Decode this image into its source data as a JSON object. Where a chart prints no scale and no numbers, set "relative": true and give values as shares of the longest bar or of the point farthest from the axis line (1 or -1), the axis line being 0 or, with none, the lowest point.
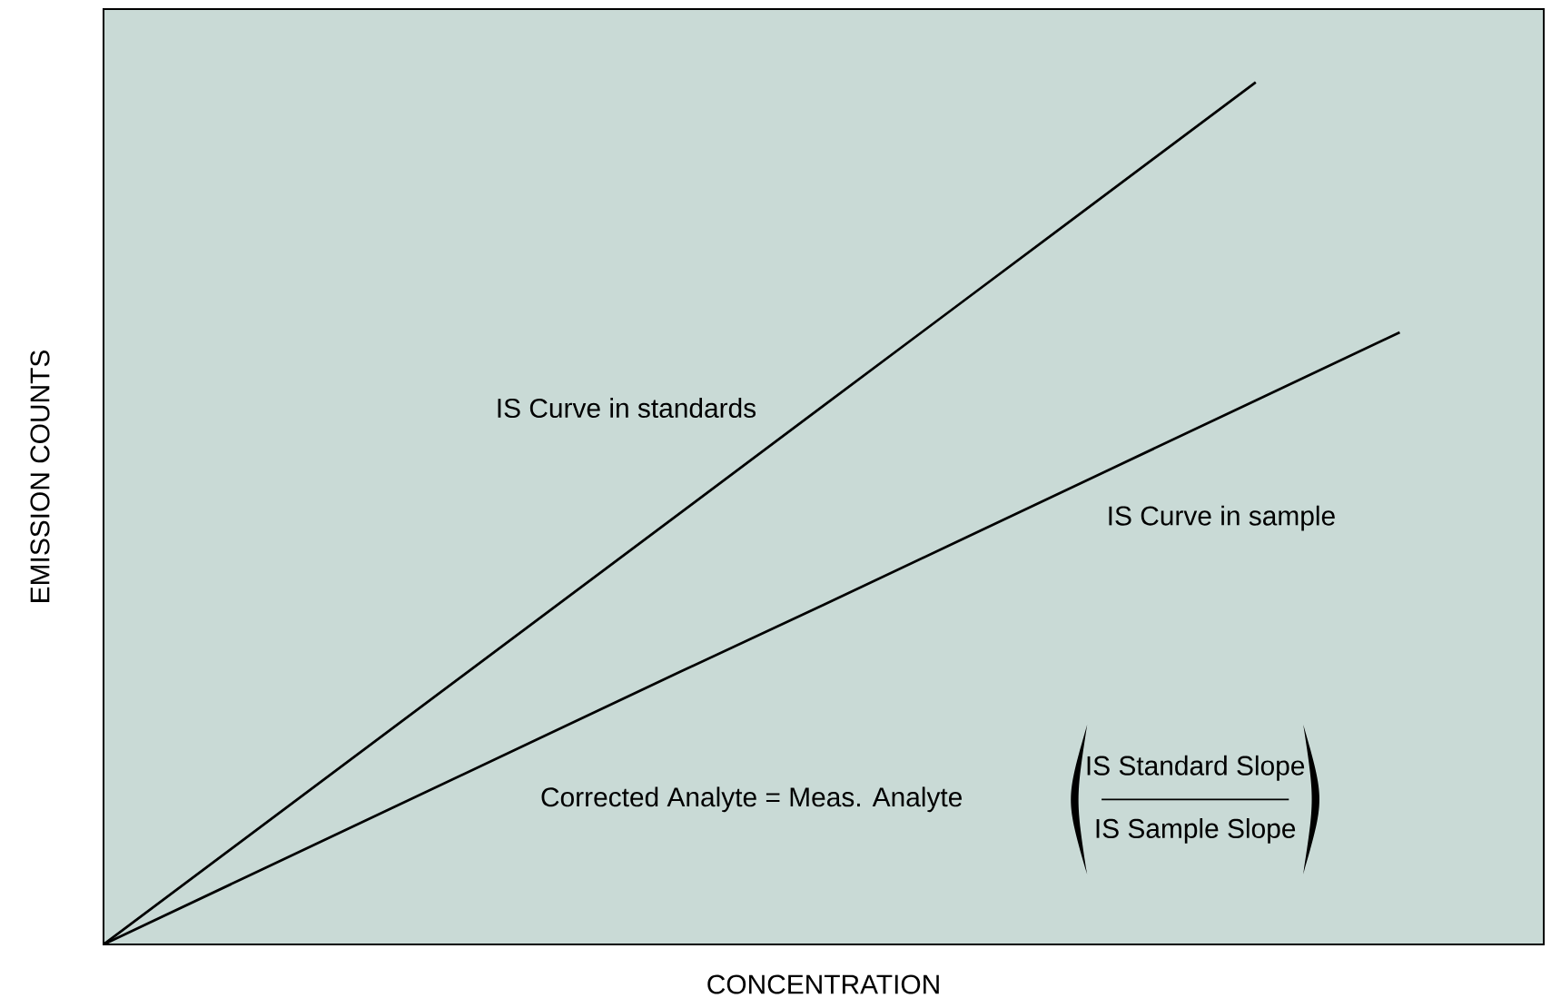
{
  "chart_data": {
    "type": "line",
    "relative": true,
    "xlabel": "CONCENTRATION",
    "ylabel": "EMISSION COUNTS",
    "legend": false,
    "categories": [
      null,
      null,
      null,
      null,
      null,
      null,
      null,
      null,
      null,
      null,
      null
    ],
    "series": [
      {
        "name": "IS Curve in standards",
        "color": "#000000",
        "values": [
          0,
          0.125,
          0.25,
          0.375,
          0.5,
          0.625,
          0.75,
          0.875,
          1,
          null,
          null
        ]
      },
      {
        "name": "IS Curve in sample",
        "color": "#000000",
        "values": [
          0,
          0.079,
          0.158,
          0.237,
          0.316,
          0.394,
          0.473,
          0.552,
          0.631,
          0.71,
          null
        ]
      }
    ],
    "annotations": [
      "Corrected Analyte = Meas. Analyte",
      "IS Standard Slope",
      "IS Sample Slope"
    ]
  }
}
